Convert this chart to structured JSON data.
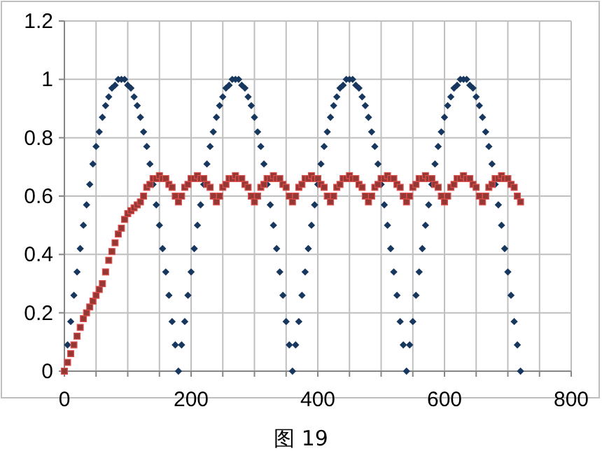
{
  "chart_data": {
    "type": "scatter",
    "annotations": [
      "图 19"
    ],
    "x": [
      0,
      5,
      10,
      15,
      20,
      25,
      30,
      35,
      40,
      45,
      50,
      55,
      60,
      65,
      70,
      75,
      80,
      85,
      90,
      95,
      100,
      105,
      110,
      115,
      120,
      125,
      130,
      135,
      140,
      145,
      150,
      155,
      160,
      165,
      170,
      175,
      180,
      185,
      190,
      195,
      200,
      205,
      210,
      215,
      220,
      225,
      230,
      235,
      240,
      245,
      250,
      255,
      260,
      265,
      270,
      275,
      280,
      285,
      290,
      295,
      300,
      305,
      310,
      315,
      320,
      325,
      330,
      335,
      340,
      345,
      350,
      355,
      360,
      365,
      370,
      375,
      380,
      385,
      390,
      395,
      400,
      405,
      410,
      415,
      420,
      425,
      430,
      435,
      440,
      445,
      450,
      455,
      460,
      465,
      470,
      475,
      480,
      485,
      490,
      495,
      500,
      505,
      510,
      515,
      520,
      525,
      530,
      535,
      540,
      545,
      550,
      555,
      560,
      565,
      570,
      575,
      580,
      585,
      590,
      595,
      600,
      605,
      610,
      615,
      620,
      625,
      630,
      635,
      640,
      645,
      650,
      655,
      660,
      665,
      670,
      675,
      680,
      685,
      690,
      695,
      700,
      705,
      710,
      715,
      720
    ],
    "series": [
      {
        "color": "#17375e",
        "marker": "diamond",
        "values": [
          null,
          0.09,
          0.17,
          0.26,
          0.34,
          0.42,
          0.5,
          0.57,
          0.64,
          0.71,
          0.77,
          0.82,
          0.87,
          0.91,
          0.94,
          0.97,
          0.98,
          1,
          1,
          1,
          0.98,
          0.97,
          0.94,
          0.91,
          0.87,
          0.82,
          0.77,
          0.71,
          0.64,
          0.57,
          0.5,
          0.42,
          0.34,
          0.26,
          0.17,
          0.09,
          0,
          0.09,
          0.17,
          0.26,
          0.34,
          0.42,
          0.5,
          0.57,
          0.64,
          0.71,
          0.77,
          0.82,
          0.87,
          0.91,
          0.94,
          0.97,
          0.98,
          1,
          1,
          1,
          0.98,
          0.97,
          0.94,
          0.91,
          0.87,
          0.82,
          0.77,
          0.71,
          0.64,
          0.57,
          0.5,
          0.42,
          0.34,
          0.26,
          0.17,
          0.09,
          0,
          0.09,
          0.17,
          0.26,
          0.34,
          0.42,
          0.5,
          0.57,
          0.64,
          0.71,
          0.77,
          0.82,
          0.87,
          0.91,
          0.94,
          0.97,
          0.98,
          1,
          1,
          1,
          0.98,
          0.97,
          0.94,
          0.91,
          0.87,
          0.82,
          0.77,
          0.71,
          0.64,
          0.57,
          0.5,
          0.42,
          0.34,
          0.26,
          0.17,
          0.09,
          0,
          0.09,
          0.17,
          0.26,
          0.34,
          0.42,
          0.5,
          0.57,
          0.64,
          0.71,
          0.77,
          0.82,
          0.87,
          0.91,
          0.94,
          0.97,
          0.98,
          1,
          1,
          1,
          0.98,
          0.97,
          0.94,
          0.91,
          0.87,
          0.82,
          0.77,
          0.71,
          0.64,
          0.57,
          0.5,
          0.42,
          0.34,
          0.26,
          0.17,
          0.09,
          0
        ]
      },
      {
        "color": "#953735",
        "marker": "square",
        "values": [
          0,
          0.03,
          0.06,
          0.09,
          0.12,
          0.15,
          0.18,
          0.2,
          0.22,
          0.24,
          0.26,
          0.28,
          0.3,
          0.34,
          0.38,
          0.41,
          0.44,
          0.47,
          0.49,
          0.52,
          0.54,
          0.55,
          0.56,
          0.57,
          0.58,
          0.6,
          0.63,
          0.64,
          0.66,
          0.66,
          0.67,
          0.66,
          0.66,
          0.64,
          0.63,
          0.6,
          0.58,
          0.6,
          0.63,
          0.64,
          0.66,
          0.66,
          0.67,
          0.66,
          0.66,
          0.64,
          0.63,
          0.6,
          0.58,
          0.6,
          0.63,
          0.64,
          0.66,
          0.66,
          0.67,
          0.66,
          0.66,
          0.64,
          0.63,
          0.6,
          0.58,
          0.6,
          0.63,
          0.64,
          0.66,
          0.66,
          0.67,
          0.66,
          0.66,
          0.64,
          0.63,
          0.6,
          0.58,
          0.6,
          0.63,
          0.64,
          0.66,
          0.66,
          0.67,
          0.66,
          0.66,
          0.64,
          0.63,
          0.6,
          0.58,
          0.6,
          0.63,
          0.64,
          0.66,
          0.66,
          0.67,
          0.66,
          0.66,
          0.64,
          0.63,
          0.6,
          0.58,
          0.6,
          0.63,
          0.64,
          0.66,
          0.66,
          0.67,
          0.66,
          0.66,
          0.64,
          0.63,
          0.6,
          0.58,
          0.6,
          0.63,
          0.64,
          0.66,
          0.66,
          0.67,
          0.66,
          0.66,
          0.64,
          0.63,
          0.6,
          0.58,
          0.6,
          0.63,
          0.64,
          0.66,
          0.66,
          0.67,
          0.66,
          0.66,
          0.64,
          0.63,
          0.6,
          0.58,
          0.6,
          0.63,
          0.64,
          0.66,
          0.66,
          0.67,
          0.66,
          0.66,
          0.64,
          0.63,
          0.6,
          0.58
        ]
      }
    ],
    "xlim": [
      0,
      800
    ],
    "xticks": [
      0,
      {
        "value": 50,
        "label": null
      },
      {
        "value": 100,
        "label": null
      },
      {
        "value": 150,
        "label": null
      },
      200,
      {
        "value": 250,
        "label": null
      },
      {
        "value": 300,
        "label": null
      },
      {
        "value": 350,
        "label": null
      },
      400,
      {
        "value": 450,
        "label": null
      },
      {
        "value": 500,
        "label": null
      },
      {
        "value": 550,
        "label": null
      },
      600,
      {
        "value": 650,
        "label": null
      },
      {
        "value": 700,
        "label": null
      },
      {
        "value": 750,
        "label": null
      },
      800
    ],
    "ylim": [
      0,
      1.2
    ],
    "yticks": [
      0,
      0.2,
      0.4,
      0.6,
      0.8,
      1,
      1.2
    ],
    "grid": true
  }
}
